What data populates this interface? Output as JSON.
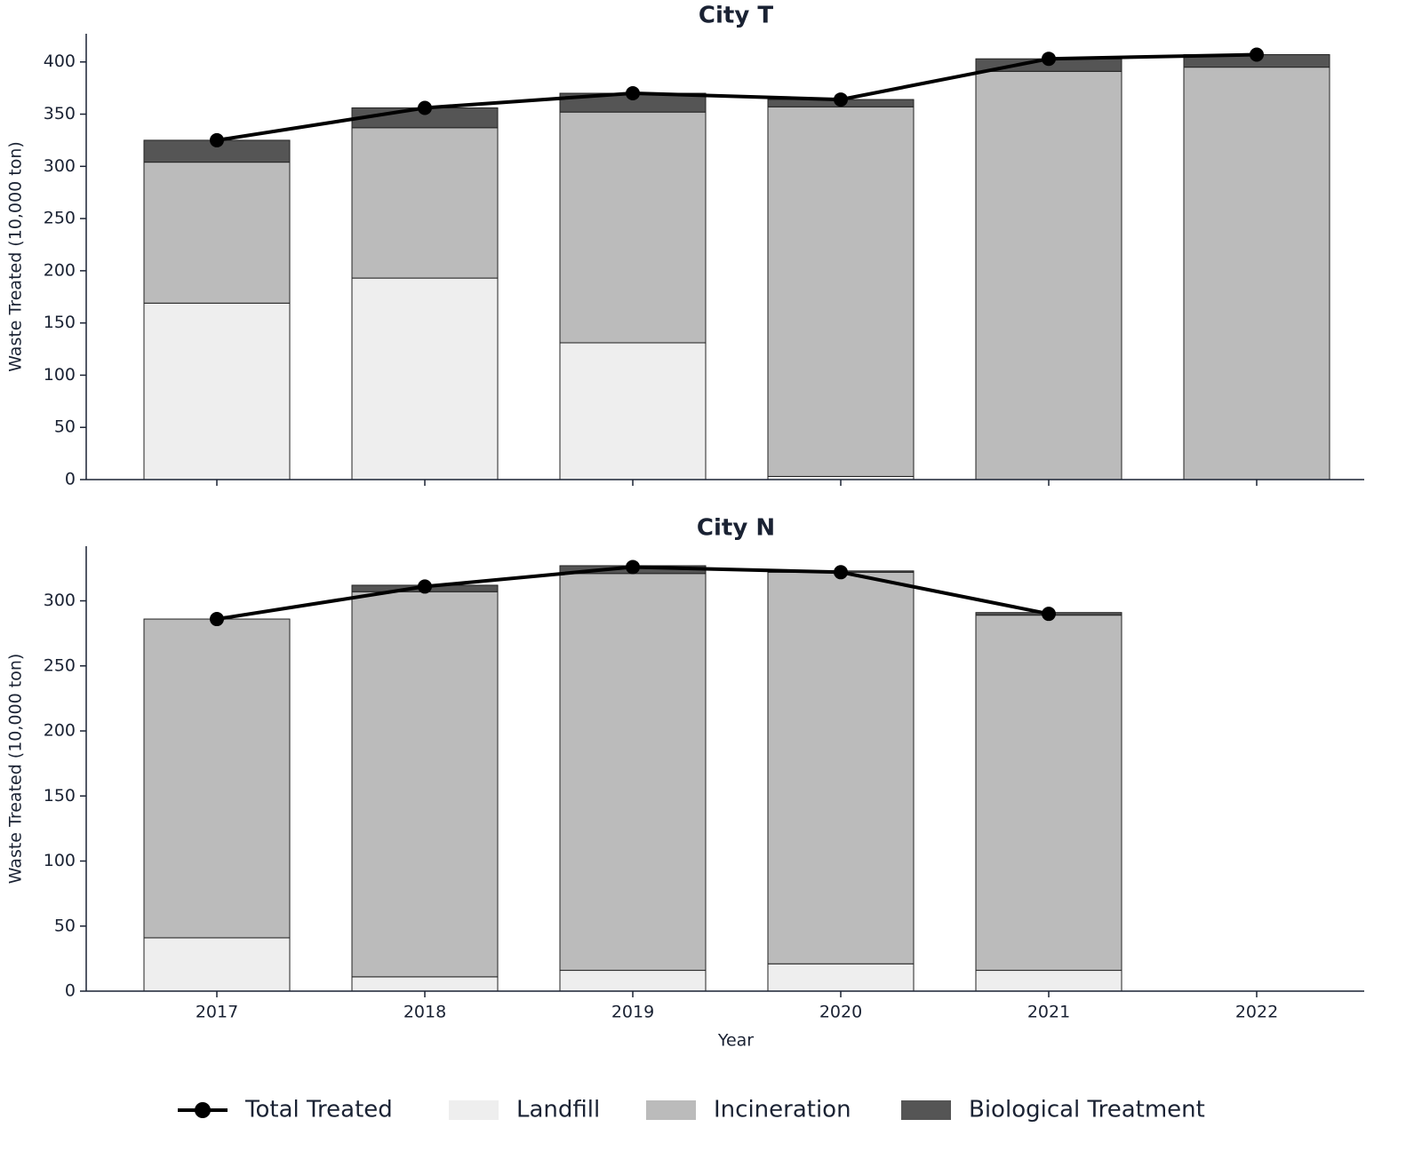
{
  "chart_data": [
    {
      "type": "bar",
      "title": "City T",
      "y_label": "Waste Treated (10,000 ton)",
      "categories": [
        "2017",
        "2018",
        "2019",
        "2020",
        "2021",
        "2022"
      ],
      "ylim": [
        0,
        427
      ],
      "yticks": [
        0,
        50,
        100,
        150,
        200,
        250,
        300,
        350,
        400
      ],
      "series": [
        {
          "name": "Total Treated",
          "type": "line",
          "color": "#000000",
          "values": [
            325,
            356,
            370,
            364,
            403,
            407
          ]
        },
        {
          "name": "Landfill",
          "color": "#eeeeee",
          "values": [
            169,
            193,
            131,
            3,
            0,
            0
          ]
        },
        {
          "name": "Incineration",
          "color": "#bbbbbb",
          "values": [
            135,
            144,
            221,
            354,
            391,
            395
          ]
        },
        {
          "name": "Biological Treatment",
          "color": "#555555",
          "values": [
            21,
            19,
            18,
            7,
            12,
            12
          ]
        }
      ]
    },
    {
      "type": "bar",
      "title": "City N",
      "y_label": "Waste Treated (10,000 ton)",
      "x_label": "Year",
      "categories": [
        "2017",
        "2018",
        "2019",
        "2020",
        "2021",
        "2022"
      ],
      "ylim": [
        0,
        342
      ],
      "yticks": [
        0,
        50,
        100,
        150,
        200,
        250,
        300
      ],
      "series": [
        {
          "name": "Total Treated",
          "type": "line",
          "color": "#000000",
          "values": [
            286,
            311,
            326,
            322,
            290,
            null
          ]
        },
        {
          "name": "Landfill",
          "color": "#eeeeee",
          "values": [
            41,
            11,
            16,
            21,
            16,
            null
          ]
        },
        {
          "name": "Incineration",
          "color": "#bbbbbb",
          "values": [
            245,
            296,
            305,
            301,
            273,
            null
          ]
        },
        {
          "name": "Biological Treatment",
          "color": "#555555",
          "values": [
            0,
            5,
            6,
            1,
            2,
            null
          ]
        }
      ]
    }
  ]
}
